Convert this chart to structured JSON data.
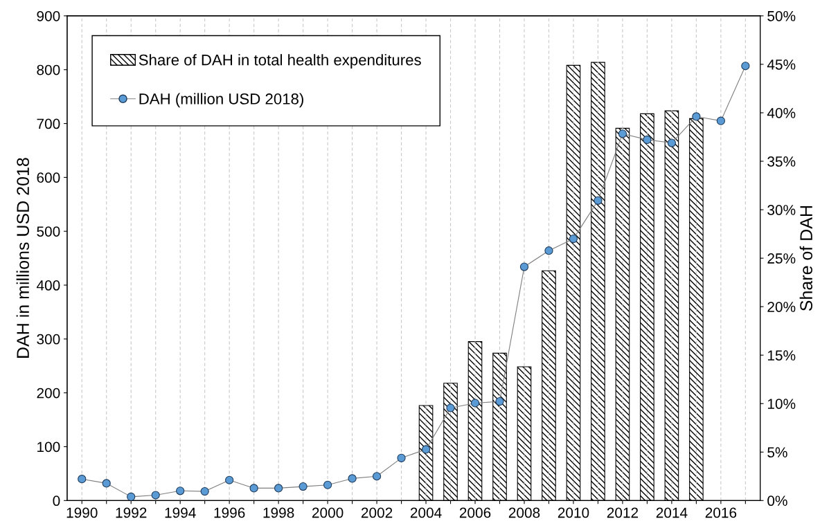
{
  "chart_data": {
    "type": "bar",
    "ylabel": "DAH in millions USD 2018",
    "y2label": "Share of DAH",
    "x": [
      1990,
      1991,
      1992,
      1993,
      1994,
      1995,
      1996,
      1997,
      1998,
      1999,
      2000,
      2001,
      2002,
      2003,
      2004,
      2005,
      2006,
      2007,
      2008,
      2009,
      2010,
      2011,
      2012,
      2013,
      2014,
      2015,
      2016,
      2017
    ],
    "series": [
      {
        "name": "Share of DAH in total health expenditures",
        "axis": "y2",
        "color": "#000000",
        "values": [
          null,
          null,
          null,
          null,
          null,
          null,
          null,
          null,
          null,
          null,
          null,
          null,
          null,
          null,
          9.8,
          12.1,
          16.4,
          15.2,
          13.8,
          23.7,
          44.9,
          45.2,
          38.4,
          39.9,
          40.2,
          39.4,
          null,
          null
        ]
      },
      {
        "name": "DAH (million USD 2018)",
        "type": "line",
        "axis": "y",
        "color": "#5b9bd5",
        "marker": "circle",
        "values": [
          40,
          32,
          7,
          10,
          18,
          17,
          38,
          23,
          23,
          26,
          29,
          41,
          45,
          79,
          95,
          172,
          181,
          184,
          434,
          464,
          486,
          557,
          681,
          670,
          664,
          713,
          705,
          807
        ]
      }
    ],
    "xlim": [
      1989.4,
      2017.6
    ],
    "xticks": [
      1990,
      {
        "value": 1991,
        "label": null
      },
      1992,
      {
        "value": 1993,
        "label": null
      },
      1994,
      {
        "value": 1995,
        "label": null
      },
      1996,
      {
        "value": 1997,
        "label": null
      },
      1998,
      {
        "value": 1999,
        "label": null
      },
      2000,
      {
        "value": 2001,
        "label": null
      },
      2002,
      {
        "value": 2003,
        "label": null
      },
      2004,
      {
        "value": 2005,
        "label": null
      },
      2006,
      {
        "value": 2007,
        "label": null
      },
      2008,
      {
        "value": 2009,
        "label": null
      },
      2010,
      {
        "value": 2011,
        "label": null
      },
      2012,
      {
        "value": 2013,
        "label": null
      },
      2014,
      {
        "value": 2015,
        "label": null
      },
      2016,
      {
        "value": 2017,
        "label": null
      }
    ],
    "ylim": [
      0,
      900
    ],
    "yticks": [
      0,
      100,
      200,
      300,
      400,
      500,
      600,
      700,
      800,
      900
    ],
    "y2lim": [
      0,
      50
    ],
    "y2ticks": [
      {
        "value": 0,
        "label": "0%"
      },
      {
        "value": 5,
        "label": "5%"
      },
      {
        "value": 10,
        "label": "10%"
      },
      {
        "value": 15,
        "label": "15%"
      },
      {
        "value": 20,
        "label": "20%"
      },
      {
        "value": 25,
        "label": "25%"
      },
      {
        "value": 30,
        "label": "30%"
      },
      {
        "value": 35,
        "label": "35%"
      },
      {
        "value": 40,
        "label": "40%"
      },
      {
        "value": 45,
        "label": "45%"
      },
      {
        "value": 50,
        "label": "50%"
      }
    ],
    "grid": "x",
    "legend": "top left"
  }
}
